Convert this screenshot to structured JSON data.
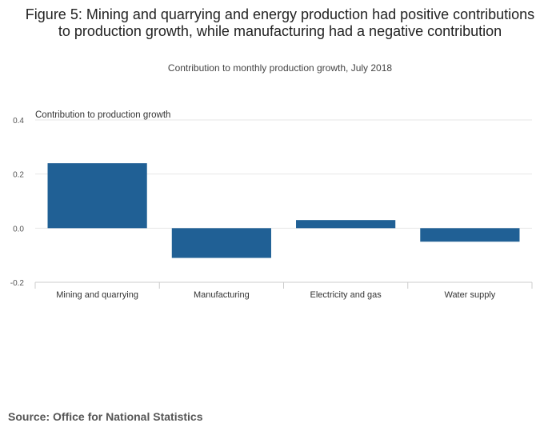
{
  "chart_data": {
    "type": "bar",
    "title": "Figure 5: Mining and quarrying and energy production had positive contributions to production growth, while manufacturing had a negative contribution",
    "subtitle": "Contribution to monthly production growth, July 2018",
    "ylabel": "Contribution to production growth",
    "xlabel": "",
    "categories": [
      "Mining and quarrying",
      "Manufacturing",
      "Electricity and gas",
      "Water supply"
    ],
    "values": [
      0.24,
      -0.11,
      0.03,
      -0.05
    ],
    "ylim": [
      -0.2,
      0.4
    ],
    "yticks": [
      "0.4",
      "0.2",
      "0.0",
      "-0.2"
    ],
    "ytick_values": [
      0.4,
      0.2,
      0.0,
      -0.2
    ],
    "grid": true,
    "legend": "none",
    "bar_color": "#206095"
  },
  "source": "Source: Office for National Statistics"
}
